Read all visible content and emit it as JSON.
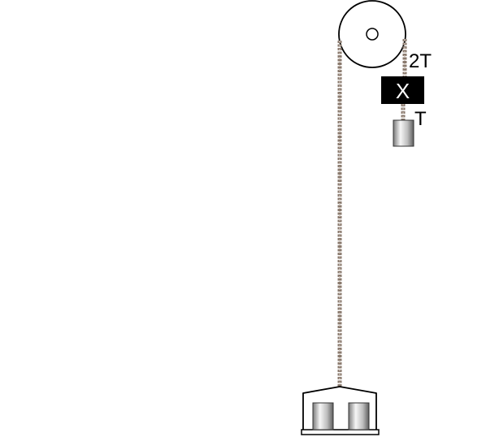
{
  "labels": {
    "upper_tension": "2T",
    "block_label": "X",
    "lower_tension": "T"
  },
  "colors": {
    "rope": "#8a7a6e",
    "rope_highlight": "#c9bdb2",
    "block_fill": "#000000",
    "block_text": "#ffffff",
    "pulley_stroke": "#000000",
    "weight_light": "#f4f4f4",
    "weight_dark": "#6e6e6e"
  }
}
